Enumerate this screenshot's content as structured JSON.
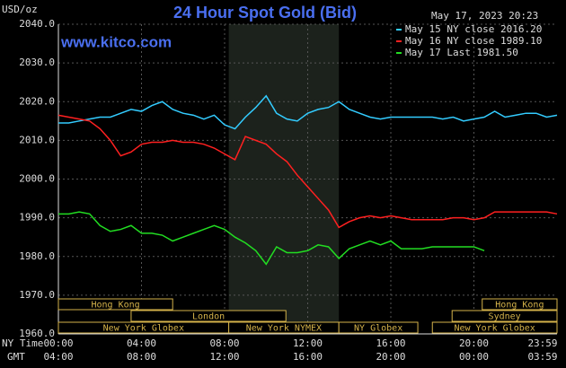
{
  "chart_data": {
    "type": "line",
    "title": "24 Hour Spot Gold (Bid)",
    "source": "www.kitco.com",
    "timestamp": "May 17, 2023 20:23",
    "y_label": "USD/oz",
    "x_label": "NY Time",
    "x2_label": "GMT",
    "x": [
      0,
      0.5,
      1,
      1.5,
      2,
      2.5,
      3,
      3.5,
      4,
      4.5,
      5,
      5.5,
      6,
      6.5,
      7,
      7.5,
      8,
      8.5,
      9,
      9.5,
      10,
      10.5,
      11,
      11.5,
      12,
      12.5,
      13,
      13.5,
      14,
      14.5,
      15,
      15.5,
      16,
      16.5,
      17,
      17.5,
      18,
      18.5,
      19,
      19.5,
      20,
      20.5,
      21,
      21.5,
      22,
      22.5,
      23,
      23.5,
      24
    ],
    "series": [
      {
        "name": "May 15 NY close 2016.20",
        "color": "#33ccff",
        "values": [
          2014.5,
          2014.5,
          2015,
          2015.5,
          2016,
          2016,
          2017,
          2018,
          2017.5,
          2019,
          2020,
          2018,
          2017,
          2016.5,
          2015.5,
          2016.5,
          2014,
          2013,
          2016,
          2018.5,
          2021.5,
          2017,
          2015.5,
          2015,
          2017,
          2018,
          2018.5,
          2020,
          2018,
          2017,
          2016,
          2015.5,
          2016,
          2016,
          2016,
          2016,
          2016,
          2015.5,
          2016,
          2015,
          2015.5,
          2016,
          2017.5,
          2016,
          2016.5,
          2017,
          2017,
          2016,
          2016.5
        ]
      },
      {
        "name": "May 16 NY close 1989.10",
        "color": "#ff2020",
        "values": [
          2016.5,
          2016,
          2015.5,
          2015,
          2013,
          2010,
          2006,
          2007,
          2009,
          2009.5,
          2009.5,
          2010,
          2009.5,
          2009.5,
          2009,
          2008,
          2006.5,
          2005,
          2011,
          2010,
          2009,
          2006.5,
          2004.5,
          2001,
          1998,
          1995,
          1992,
          1987.5,
          1989,
          1990,
          1990.5,
          1990,
          1990.5,
          1990,
          1989.5,
          1989.5,
          1989.5,
          1989.5,
          1990,
          1990,
          1989.5,
          1990,
          1991.5,
          1991.5,
          1991.5,
          1991.5,
          1991.5,
          1991.5,
          1991
        ]
      },
      {
        "name": "May 17 Last 1981.50",
        "color": "#22dd22",
        "values": [
          1991,
          1991,
          1991.5,
          1991,
          1988,
          1986.5,
          1987,
          1988,
          1986,
          1986,
          1985.5,
          1984,
          1985,
          1986,
          1987,
          1988,
          1987,
          1985,
          1983.5,
          1981.5,
          1978,
          1982.5,
          1981,
          1981,
          1981.5,
          1983,
          1982.5,
          1979.5,
          1982,
          1983,
          1984,
          1983,
          1984,
          1982,
          1982,
          1982,
          1982.5,
          1982.5,
          1982.5,
          1982.5,
          1982.5,
          1981.5,
          null,
          null,
          null,
          null,
          null,
          null,
          null
        ]
      }
    ],
    "xlim": [
      0,
      24
    ],
    "ylim": [
      1960,
      2040
    ],
    "yticks": [
      {
        "value": 1960,
        "label": "1960.0"
      },
      {
        "value": 1970,
        "label": "1970.0"
      },
      {
        "value": 1980,
        "label": "1980.0"
      },
      {
        "value": 1990,
        "label": "1990.0"
      },
      {
        "value": 2000,
        "label": "2000.0"
      },
      {
        "value": 2010,
        "label": "2010.0"
      },
      {
        "value": 2020,
        "label": "2020.0"
      },
      {
        "value": 2030,
        "label": "2030.0"
      },
      {
        "value": 2040,
        "label": "2040.0"
      }
    ],
    "xticks": [
      {
        "value": 0,
        "label": "00:00"
      },
      {
        "value": 4,
        "label": "04:00"
      },
      {
        "value": 8,
        "label": "08:00"
      },
      {
        "value": 12,
        "label": "12:00"
      },
      {
        "value": 16,
        "label": "16:00"
      },
      {
        "value": 20,
        "label": "20:00"
      },
      {
        "value": 23.98,
        "label": "23:59"
      }
    ],
    "xticks_gmt": [
      "04:00",
      "08:00",
      "12:00",
      "16:00",
      "20:00",
      "00:00",
      "03:59"
    ],
    "grid": true,
    "legend": "top-right",
    "sessions": [
      [
        {
          "label": "Hong Kong",
          "start": 0,
          "end": 5.5
        },
        {
          "label": "Hong Kong",
          "start": 20.4,
          "end": 24
        }
      ],
      [
        {
          "label": "London",
          "start": 3.5,
          "end": 10.95
        },
        {
          "label": "Sydney",
          "start": 18.95,
          "end": 24
        }
      ],
      [
        {
          "label": "New York Globex",
          "start": 0,
          "end": 8.2
        },
        {
          "label": "New York NYMEX",
          "start": 8.2,
          "end": 13.5,
          "shaded": true
        },
        {
          "label": "NY Globex",
          "start": 13.5,
          "end": 17.3
        },
        {
          "label": "New York Globex",
          "start": 18,
          "end": 24
        }
      ]
    ]
  }
}
